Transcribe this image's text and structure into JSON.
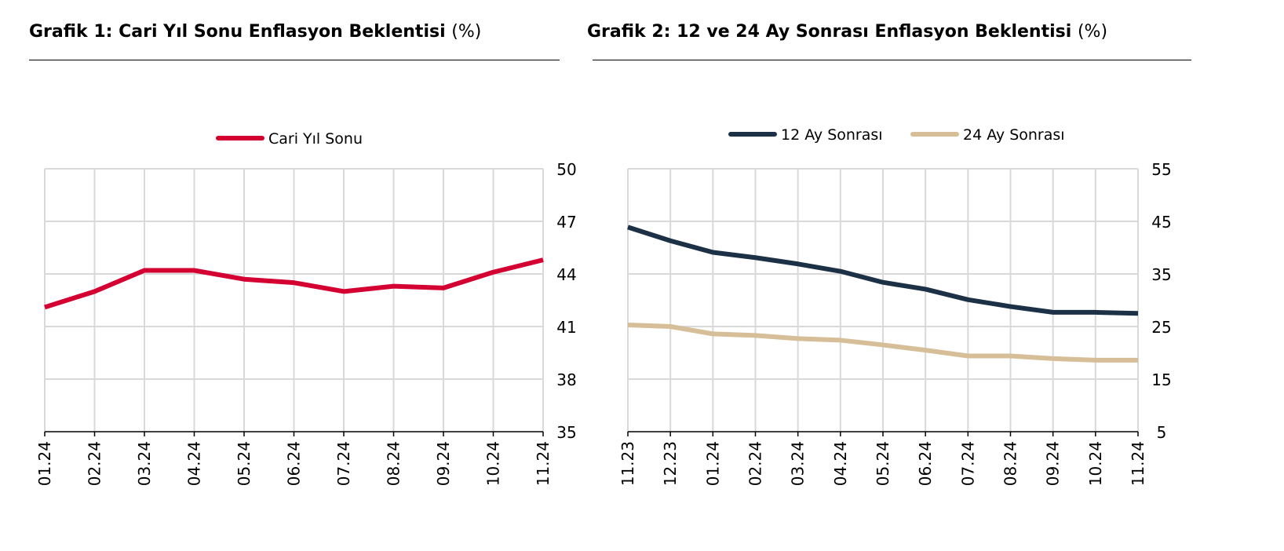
{
  "chart_data": [
    {
      "type": "line",
      "title": "Grafik 1: Cari Yıl Sonu Enflasyon Beklentisi",
      "unit": "(%)",
      "categories": [
        "01.24",
        "02.24",
        "03.24",
        "04.24",
        "05.24",
        "06.24",
        "07.24",
        "08.24",
        "09.24",
        "10.24",
        "11.24"
      ],
      "series": [
        {
          "name": "Cari Yıl Sonu",
          "color": "#d50032",
          "values": [
            42.1,
            43.0,
            44.2,
            44.2,
            43.7,
            43.5,
            43.0,
            43.3,
            43.2,
            44.1,
            44.8
          ]
        }
      ],
      "ylim": [
        35,
        50
      ],
      "yticks": [
        35,
        38,
        41,
        44,
        47,
        50
      ],
      "yaxis_side": "right",
      "grid": true,
      "legend": "top-center"
    },
    {
      "type": "line",
      "title": "Grafik 2: 12 ve 24 Ay Sonrası Enflasyon Beklentisi",
      "unit": "(%)",
      "categories": [
        "11.23",
        "12.23",
        "01.24",
        "02.24",
        "03.24",
        "04.24",
        "05.24",
        "06.24",
        "07.24",
        "08.24",
        "09.24",
        "10.24",
        "11.24"
      ],
      "series": [
        {
          "name": "12 Ay Sonrası",
          "color": "#1c3046",
          "values": [
            43.9,
            41.3,
            39.1,
            38.1,
            36.9,
            35.5,
            33.4,
            32.1,
            30.1,
            28.8,
            27.7,
            27.7,
            27.5
          ]
        },
        {
          "name": "24 Ay Sonrası",
          "color": "#d6be98",
          "values": [
            25.3,
            25.0,
            23.6,
            23.3,
            22.7,
            22.4,
            21.5,
            20.5,
            19.4,
            19.4,
            18.9,
            18.6,
            18.6
          ]
        }
      ],
      "ylim": [
        5,
        55
      ],
      "yticks": [
        5,
        15,
        25,
        35,
        45,
        55
      ],
      "yaxis_side": "right",
      "grid": true,
      "legend": "top-center"
    }
  ]
}
